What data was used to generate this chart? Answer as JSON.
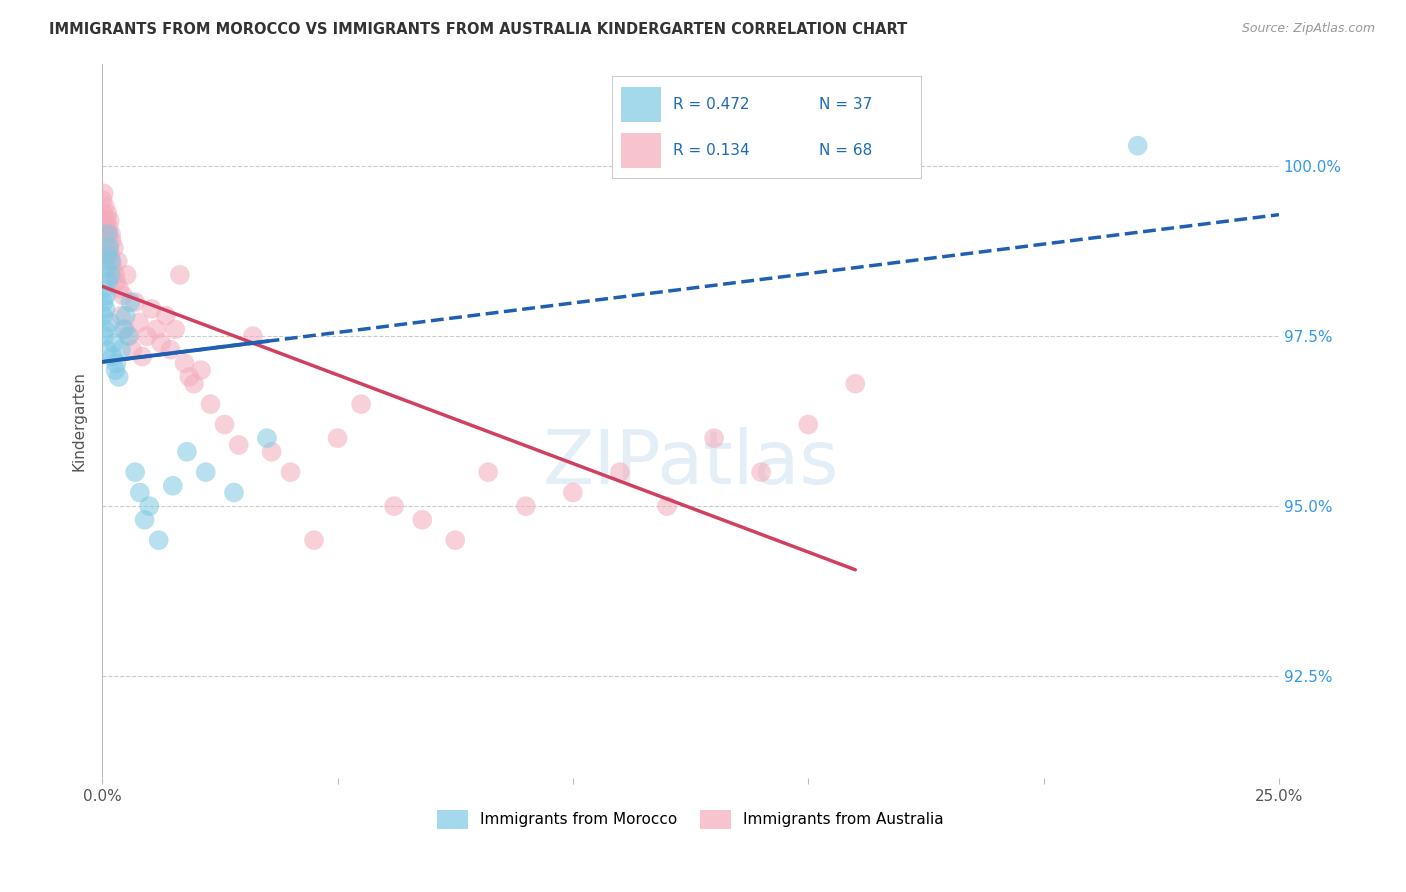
{
  "title": "IMMIGRANTS FROM MOROCCO VS IMMIGRANTS FROM AUSTRALIA KINDERGARTEN CORRELATION CHART",
  "source": "Source: ZipAtlas.com",
  "ylabel": "Kindergarten",
  "ytick_values": [
    92.5,
    95.0,
    97.5,
    100.0
  ],
  "xlim": [
    0.0,
    25.0
  ],
  "ylim": [
    91.0,
    101.5
  ],
  "legend_r_morocco": "0.472",
  "legend_n_morocco": "37",
  "legend_r_australia": "0.134",
  "legend_n_australia": "68",
  "color_morocco": "#7EC8E3",
  "color_australia": "#F4AABB",
  "color_trendline_morocco": "#2060B0",
  "color_trendline_australia": "#D04060",
  "morocco_x": [
    0.02,
    0.03,
    0.04,
    0.05,
    0.06,
    0.07,
    0.08,
    0.09,
    0.1,
    0.11,
    0.12,
    0.13,
    0.15,
    0.17,
    0.18,
    0.2,
    0.22,
    0.25,
    0.28,
    0.3,
    0.35,
    0.4,
    0.45,
    0.5,
    0.55,
    0.6,
    0.7,
    0.8,
    0.9,
    1.0,
    1.2,
    1.5,
    1.8,
    2.2,
    2.8,
    3.5,
    22.0
  ],
  "morocco_y": [
    97.8,
    98.0,
    98.2,
    97.5,
    97.6,
    97.9,
    98.1,
    98.5,
    97.3,
    98.7,
    99.0,
    98.3,
    98.8,
    97.7,
    98.4,
    98.6,
    97.2,
    97.4,
    97.0,
    97.1,
    96.9,
    97.3,
    97.6,
    97.8,
    97.5,
    98.0,
    95.5,
    95.2,
    94.8,
    95.0,
    94.5,
    95.3,
    95.8,
    95.5,
    95.2,
    96.0,
    100.3
  ],
  "australia_x": [
    0.01,
    0.02,
    0.03,
    0.04,
    0.05,
    0.06,
    0.07,
    0.08,
    0.09,
    0.1,
    0.11,
    0.12,
    0.13,
    0.14,
    0.15,
    0.16,
    0.17,
    0.18,
    0.19,
    0.2,
    0.22,
    0.25,
    0.28,
    0.3,
    0.33,
    0.36,
    0.4,
    0.44,
    0.48,
    0.52,
    0.58,
    0.64,
    0.7,
    0.78,
    0.85,
    0.95,
    1.05,
    1.15,
    1.25,
    1.35,
    1.45,
    1.55,
    1.65,
    1.75,
    1.85,
    1.95,
    2.1,
    2.3,
    2.6,
    2.9,
    3.2,
    3.6,
    4.0,
    4.5,
    5.0,
    5.5,
    6.2,
    6.8,
    7.5,
    8.2,
    9.0,
    10.0,
    11.0,
    12.0,
    13.0,
    14.0,
    15.0,
    16.0
  ],
  "australia_y": [
    99.5,
    99.3,
    99.6,
    99.2,
    99.0,
    99.4,
    99.1,
    98.9,
    99.2,
    98.8,
    99.3,
    98.7,
    99.1,
    99.0,
    98.8,
    99.2,
    98.7,
    98.6,
    99.0,
    98.9,
    98.5,
    98.8,
    98.4,
    98.3,
    98.6,
    98.2,
    97.8,
    98.1,
    97.6,
    98.4,
    97.5,
    97.3,
    98.0,
    97.7,
    97.2,
    97.5,
    97.9,
    97.6,
    97.4,
    97.8,
    97.3,
    97.6,
    98.4,
    97.1,
    96.9,
    96.8,
    97.0,
    96.5,
    96.2,
    95.9,
    97.5,
    95.8,
    95.5,
    94.5,
    96.0,
    96.5,
    95.0,
    94.8,
    94.5,
    95.5,
    95.0,
    95.2,
    95.5,
    95.0,
    96.0,
    95.5,
    96.2,
    96.8
  ]
}
